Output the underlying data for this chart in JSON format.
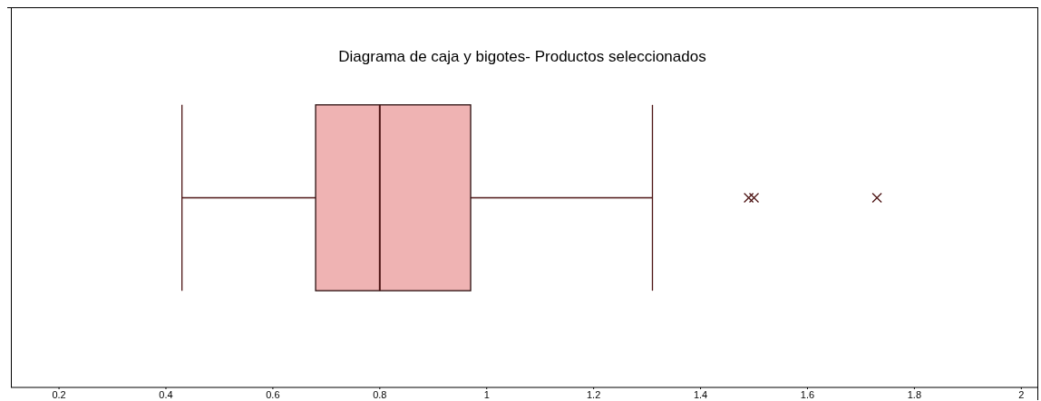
{
  "chart_data": {
    "type": "box",
    "title": "Diagrama de caja y bigotes- Productos seleccionados",
    "orientation": "horizontal",
    "categories": [
      null
    ],
    "boxes": [
      {
        "low": 0.43,
        "q1": 0.68,
        "median": 0.8,
        "q3": 0.97,
        "high": 1.31,
        "outliers": [
          1.49,
          1.5,
          1.73
        ]
      }
    ],
    "color": "#efb3b3",
    "marker": "cross",
    "grid": false,
    "tick_labels": "x",
    "xlim": [
      0.11,
      2.03
    ],
    "xticks": [
      0.2,
      0.4,
      0.6,
      0.8,
      1,
      1.2,
      1.4,
      1.6,
      1.8,
      2
    ]
  }
}
